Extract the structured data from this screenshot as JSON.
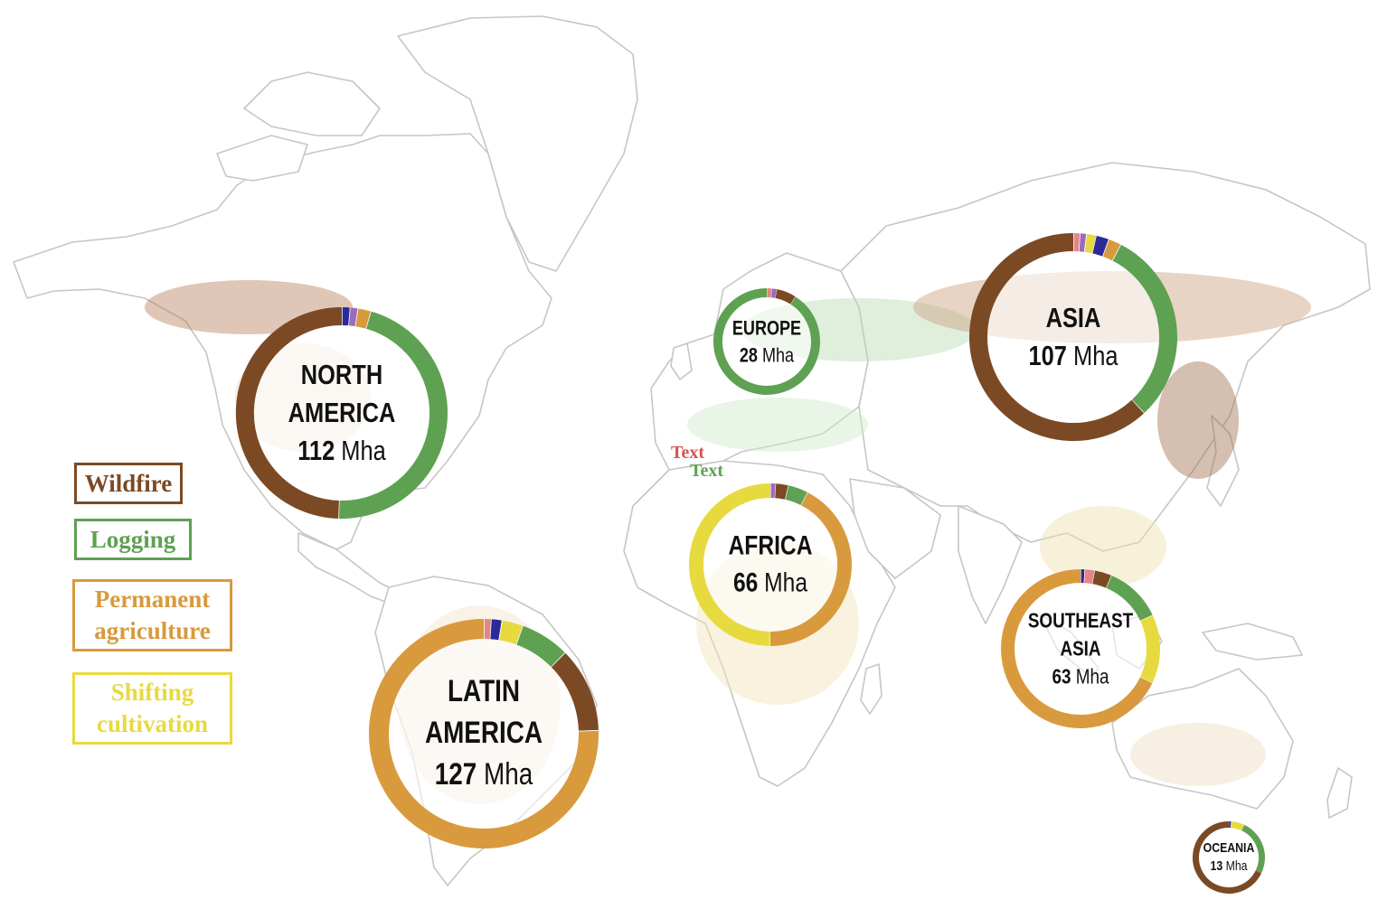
{
  "legend": {
    "items": [
      {
        "label": "Wildfire",
        "color": "#7b4a24"
      },
      {
        "label": "Logging",
        "color": "#5ea152"
      },
      {
        "label": "Permanent agriculture",
        "color": "#d89a3d"
      },
      {
        "label": "Shifting cultivation",
        "color": "#e7da3f"
      }
    ]
  },
  "stray_labels": [
    {
      "text": "Text",
      "color": "#d9534f"
    },
    {
      "text": "Text",
      "color": "#5ea152"
    }
  ],
  "colors": {
    "wildfire": "#7b4a24",
    "logging": "#5ea152",
    "permanent_agriculture": "#d89a3d",
    "shifting_cultivation": "#e7da3f",
    "urbanization": "#2b2a9a",
    "minor_violet": "#9a6bbf",
    "minor_pink": "#e38686",
    "coastline": "#c6c6c6"
  },
  "regions": [
    {
      "name_lines": [
        "NORTH",
        "AMERICA"
      ],
      "amount": "112",
      "unit": "Mha",
      "segments": [
        {
          "cat": "urbanization",
          "pct": 1.2
        },
        {
          "cat": "minor_violet",
          "pct": 1.2
        },
        {
          "cat": "permanent_agriculture",
          "pct": 2.0
        },
        {
          "cat": "logging",
          "pct": 46.0
        },
        {
          "cat": "wildfire",
          "pct": 49.6
        }
      ]
    },
    {
      "name_lines": [
        "EUROPE"
      ],
      "amount": "28",
      "unit": "Mha",
      "segments": [
        {
          "cat": "minor_pink",
          "pct": 1.5
        },
        {
          "cat": "minor_violet",
          "pct": 1.5
        },
        {
          "cat": "wildfire",
          "pct": 6.0
        },
        {
          "cat": "logging",
          "pct": 91.0
        }
      ]
    },
    {
      "name_lines": [
        "ASIA"
      ],
      "amount": "107",
      "unit": "Mha",
      "segments": [
        {
          "cat": "minor_pink",
          "pct": 1.0
        },
        {
          "cat": "minor_violet",
          "pct": 1.0
        },
        {
          "cat": "shifting_cultivation",
          "pct": 1.5
        },
        {
          "cat": "urbanization",
          "pct": 2.0
        },
        {
          "cat": "permanent_agriculture",
          "pct": 2.0
        },
        {
          "cat": "logging",
          "pct": 30.5
        },
        {
          "cat": "wildfire",
          "pct": 62.0
        }
      ]
    },
    {
      "name_lines": [
        "AFRICA"
      ],
      "amount": "66",
      "unit": "Mha",
      "segments": [
        {
          "cat": "minor_violet",
          "pct": 1.0
        },
        {
          "cat": "wildfire",
          "pct": 2.5
        },
        {
          "cat": "logging",
          "pct": 4.0
        },
        {
          "cat": "permanent_agriculture",
          "pct": 42.5
        },
        {
          "cat": "shifting_cultivation",
          "pct": 50.0
        }
      ]
    },
    {
      "name_lines": [
        "LATIN",
        "AMERICA"
      ],
      "amount": "127",
      "unit": "Mha",
      "segments": [
        {
          "cat": "minor_pink",
          "pct": 1.0
        },
        {
          "cat": "urbanization",
          "pct": 1.5
        },
        {
          "cat": "shifting_cultivation",
          "pct": 3.0
        },
        {
          "cat": "logging",
          "pct": 7.0
        },
        {
          "cat": "wildfire",
          "pct": 12.0
        },
        {
          "cat": "permanent_agriculture",
          "pct": 75.5
        }
      ]
    },
    {
      "name_lines": [
        "SOUTHEAST",
        "ASIA"
      ],
      "amount": "63",
      "unit": "Mha",
      "segments": [
        {
          "cat": "urbanization",
          "pct": 0.8
        },
        {
          "cat": "minor_pink",
          "pct": 2.0
        },
        {
          "cat": "wildfire",
          "pct": 3.5
        },
        {
          "cat": "logging",
          "pct": 11.7
        },
        {
          "cat": "shifting_cultivation",
          "pct": 14.0
        },
        {
          "cat": "permanent_agriculture",
          "pct": 68.0
        }
      ]
    },
    {
      "name_lines": [
        "OCEANIA"
      ],
      "amount": "13",
      "unit": "Mha",
      "segments": [
        {
          "cat": "urbanization",
          "pct": 1.0
        },
        {
          "cat": "shifting_cultivation",
          "pct": 6.0
        },
        {
          "cat": "logging",
          "pct": 25.0
        },
        {
          "cat": "wildfire",
          "pct": 68.0
        }
      ]
    }
  ]
}
